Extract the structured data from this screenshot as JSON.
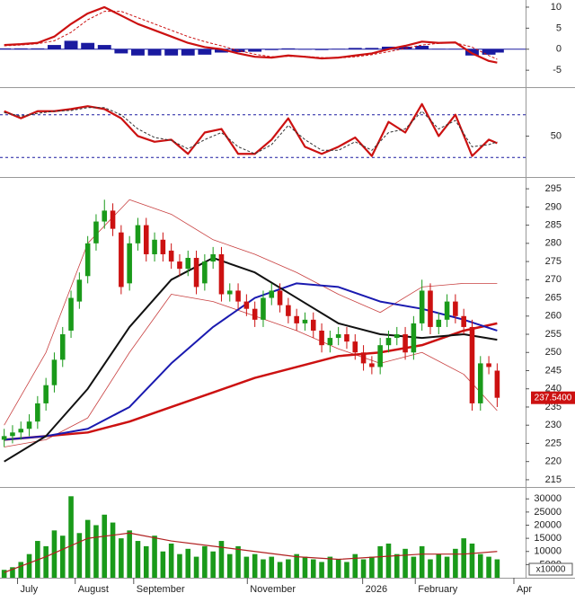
{
  "chart_data": [
    {
      "type": "macd",
      "x": [
        0,
        2,
        4,
        6,
        8,
        10,
        12,
        14,
        16,
        18,
        20,
        22,
        24,
        26,
        28,
        30,
        32,
        34,
        36,
        38,
        40,
        42,
        44,
        46,
        48,
        50,
        52,
        54,
        56,
        58,
        59
      ],
      "series": [
        {
          "color": "#cc1111",
          "dash": false,
          "values": [
            1,
            1.2,
            1.5,
            3,
            6,
            8.5,
            10,
            8,
            6,
            4.5,
            3,
            1.5,
            0.5,
            0,
            -1,
            -1.8,
            -2,
            -1.5,
            -1.8,
            -2.2,
            -2,
            -1.5,
            -1,
            0,
            0.8,
            1.8,
            1.5,
            1.6,
            -1,
            -2.8,
            -3.2
          ]
        },
        {
          "color": "#cc1111",
          "dash": true,
          "values": [
            0.8,
            1,
            1.3,
            2,
            4,
            7,
            9,
            9,
            7.5,
            6,
            4.5,
            3,
            1.8,
            0.8,
            -0.3,
            -1.2,
            -1.8,
            -1.7,
            -1.7,
            -2,
            -2.1,
            -1.8,
            -1.3,
            -0.6,
            0.2,
            1,
            1.4,
            1.5,
            0.5,
            -1.5,
            -2.4
          ]
        }
      ],
      "histogram": {
        "color": "#1a1aa0",
        "values": [
          0.2,
          0.2,
          0.2,
          1,
          2,
          1.5,
          1,
          -1,
          -1.5,
          -1.5,
          -1.5,
          -1.5,
          -1.3,
          -0.8,
          -0.7,
          -0.6,
          -0.2,
          0.2,
          -0.1,
          -0.2,
          0.1,
          0.3,
          0.3,
          0.6,
          0.6,
          0.8,
          0.1,
          0.1,
          -1.5,
          -1.3,
          -0.8
        ]
      },
      "zero_line_color": "#1a1aa0",
      "xlim": [
        -0.5,
        62.4
      ],
      "ylim": [
        -8.6,
        11.7
      ],
      "yticks": [
        10,
        5,
        0,
        -5
      ]
    },
    {
      "type": "stochastic",
      "x": [
        0,
        2,
        4,
        6,
        8,
        10,
        12,
        14,
        16,
        18,
        20,
        22,
        24,
        26,
        28,
        30,
        32,
        34,
        36,
        38,
        40,
        42,
        44,
        46,
        48,
        50,
        52,
        54,
        56,
        58,
        59
      ],
      "series": [
        {
          "color": "#cc1111",
          "dash": false,
          "values": [
            85,
            75,
            85,
            85,
            88,
            92,
            88,
            75,
            50,
            42,
            45,
            25,
            55,
            60,
            25,
            25,
            45,
            75,
            35,
            25,
            35,
            48,
            22,
            70,
            55,
            95,
            50,
            80,
            22,
            45,
            40
          ]
        },
        {
          "color": "#333333",
          "dash": true,
          "values": [
            83,
            78,
            82,
            85,
            86,
            90,
            90,
            80,
            60,
            48,
            44,
            32,
            45,
            55,
            35,
            25,
            38,
            65,
            45,
            30,
            30,
            42,
            30,
            55,
            60,
            85,
            60,
            72,
            35,
            38,
            42
          ]
        }
      ],
      "levels": [
        20,
        80
      ],
      "level_color": "#1a1aa0",
      "xlim": [
        -0.5,
        62.4
      ],
      "ylim": [
        -5,
        115
      ],
      "yticks": [
        50
      ]
    },
    {
      "type": "candlestick",
      "open": [
        226,
        227,
        228,
        229,
        231,
        236,
        241,
        248,
        256,
        264,
        271,
        280,
        286,
        289,
        283,
        269,
        280,
        285,
        277,
        281,
        278,
        275,
        273,
        276,
        269,
        275,
        277,
        266,
        267,
        264,
        262,
        259,
        265,
        267,
        263,
        260,
        258,
        259,
        256,
        252,
        254,
        255,
        253,
        250,
        247,
        246,
        252,
        254,
        255,
        250,
        258,
        267,
        257,
        259,
        264,
        260,
        257,
        236,
        247,
        245
      ],
      "high": [
        229,
        230,
        231,
        233,
        238,
        243,
        250,
        257,
        267,
        272,
        282,
        288,
        292,
        291,
        285,
        282,
        287,
        287,
        283,
        283,
        280,
        277,
        278,
        278,
        277,
        279,
        279,
        269,
        269,
        266,
        264,
        267,
        269,
        269,
        265,
        262,
        261,
        261,
        258,
        256,
        257,
        257,
        255,
        252,
        249,
        254,
        256,
        257,
        257,
        260,
        270,
        269,
        261,
        266,
        266,
        262,
        259,
        249,
        249,
        247
      ],
      "low": [
        224,
        225,
        226,
        227,
        229,
        234,
        239,
        246,
        254,
        262,
        269,
        278,
        284,
        282,
        266,
        267,
        278,
        275,
        275,
        275,
        273,
        271,
        271,
        266,
        267,
        273,
        264,
        264,
        262,
        260,
        257,
        257,
        263,
        261,
        258,
        256,
        256,
        254,
        250,
        250,
        252,
        251,
        248,
        245,
        244,
        244,
        250,
        252,
        248,
        248,
        256,
        255,
        255,
        257,
        258,
        255,
        234,
        234,
        244,
        235
      ],
      "close": [
        227,
        228,
        229,
        231,
        236,
        241,
        248,
        255,
        265,
        270,
        280,
        286,
        289,
        284,
        268,
        280,
        285,
        277,
        281,
        277,
        275,
        273,
        276,
        268,
        275,
        277,
        266,
        267,
        264,
        262,
        259,
        265,
        267,
        263,
        260,
        258,
        259,
        256,
        252,
        254,
        255,
        253,
        250,
        247,
        246,
        252,
        254,
        255,
        250,
        258,
        267,
        257,
        259,
        264,
        260,
        257,
        236,
        247,
        246,
        237.54
      ],
      "up_color": "#1a9a1a",
      "down_color": "#cc1111",
      "overlays": {
        "x": [
          0,
          5,
          10,
          15,
          20,
          25,
          30,
          35,
          40,
          45,
          50,
          55,
          59
        ],
        "series": [
          {
            "color": "#c84040",
            "width": 0.8,
            "values": [
              230,
              250,
              280,
              292,
              288,
              281,
              277,
              272,
              266,
              261,
              268,
              269,
              269
            ]
          },
          {
            "color": "#c84040",
            "width": 0.8,
            "values": [
              224,
              226,
              232,
              250,
              266,
              264,
              260,
              256,
              251,
              247,
              250,
              244,
              234
            ]
          },
          {
            "color": "#cc1111",
            "width": 2.5,
            "values": [
              226,
              227,
              228,
              231,
              235,
              239,
              243,
              246,
              249,
              250,
              252,
              256,
              258
            ]
          },
          {
            "color": "#1a1ab0",
            "width": 2,
            "values": [
              226,
              227,
              229,
              235,
              247,
              257,
              265,
              269,
              268,
              264,
              262,
              259,
              256
            ]
          },
          {
            "color": "#111111",
            "width": 2,
            "values": [
              220,
              227,
              240,
              257,
              270,
              276,
              272,
              265,
              258,
              255,
              254,
              255,
              253.5
            ]
          }
        ]
      },
      "last_label": {
        "value": 237.54,
        "label": "237.5400"
      },
      "last_label_color": "#cc1111",
      "xlim": [
        -0.5,
        62.4
      ],
      "ylim": [
        213.5,
        297.5
      ],
      "yticks": [
        295,
        290,
        285,
        280,
        275,
        270,
        265,
        260,
        255,
        250,
        245,
        240,
        235,
        230,
        225,
        220,
        215
      ]
    },
    {
      "type": "bar",
      "values": [
        3000,
        4000,
        6000,
        9000,
        14000,
        12000,
        18000,
        16000,
        31000,
        17000,
        22000,
        20000,
        24000,
        21000,
        15000,
        18000,
        14000,
        12000,
        16000,
        10000,
        13000,
        9000,
        11000,
        8000,
        12000,
        10000,
        14000,
        9000,
        12000,
        8000,
        9000,
        7000,
        8000,
        6000,
        7000,
        9000,
        8000,
        7000,
        6000,
        8000,
        7000,
        6000,
        9000,
        7000,
        8000,
        12000,
        13000,
        9000,
        11000,
        8000,
        12000,
        7000,
        9000,
        8000,
        11000,
        15000,
        13000,
        9000,
        8000,
        7000
      ],
      "color": "#1a9a1a",
      "ma": {
        "x": [
          0,
          5,
          10,
          15,
          20,
          25,
          30,
          35,
          40,
          45,
          50,
          55,
          59
        ],
        "color": "#b02020",
        "values": [
          2000,
          8000,
          15000,
          17000,
          14000,
          12000,
          10000,
          8000,
          7000,
          8000,
          9000,
          9000,
          10000
        ]
      },
      "unit_label": "x10000",
      "xlim": [
        -0.5,
        62.4
      ],
      "ylim": [
        0,
        33500
      ],
      "yticks": [
        30000,
        25000,
        20000,
        15000,
        10000,
        5000
      ],
      "xticks": [
        {
          "value": 1.6,
          "label": "July"
        },
        {
          "value": 8.5,
          "label": "August"
        },
        {
          "value": 15.5,
          "label": "September"
        },
        {
          "value": 29.1,
          "label": "November"
        },
        {
          "value": 42.9,
          "label": "2026"
        },
        {
          "value": 49.2,
          "label": "February"
        },
        {
          "value": 61.0,
          "label": "Apr"
        }
      ]
    }
  ]
}
